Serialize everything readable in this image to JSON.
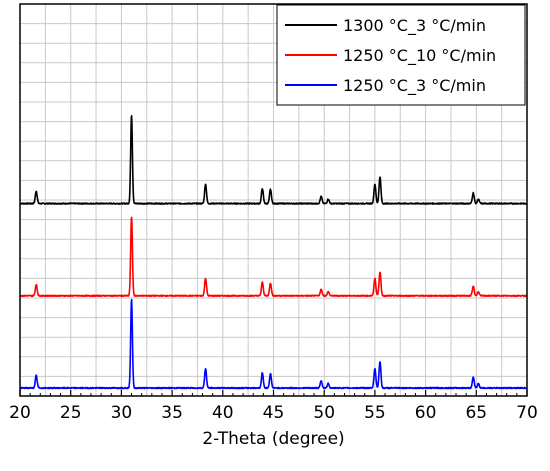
{
  "chart_data": {
    "type": "line",
    "title": "",
    "xlabel": "2-Theta (degree)",
    "ylabel": "",
    "xlim": [
      20,
      70
    ],
    "x_ticks": [
      20,
      25,
      30,
      35,
      40,
      45,
      50,
      55,
      60,
      65,
      70
    ],
    "grid": true,
    "y_ticks_visible": false,
    "legend_position": "top-right",
    "peaks": [
      {
        "x": 21.6,
        "rel": 0.14
      },
      {
        "x": 31.0,
        "rel": 1.0
      },
      {
        "x": 38.3,
        "rel": 0.22
      },
      {
        "x": 43.9,
        "rel": 0.17
      },
      {
        "x": 44.7,
        "rel": 0.16
      },
      {
        "x": 49.7,
        "rel": 0.08
      },
      {
        "x": 50.4,
        "rel": 0.05
      },
      {
        "x": 55.0,
        "rel": 0.22
      },
      {
        "x": 55.5,
        "rel": 0.3
      },
      {
        "x": 64.7,
        "rel": 0.12
      },
      {
        "x": 65.2,
        "rel": 0.05
      }
    ],
    "series": [
      {
        "name": "1300 °C_3 °C/min",
        "color": "#000000",
        "offset": 2,
        "scale": 0.96
      },
      {
        "name": "1250 °C_10 °C/min",
        "color": "#ff0000",
        "offset": 1,
        "scale": 0.86
      },
      {
        "name": "1250 °C_3 °C/min",
        "color": "#0000ff",
        "offset": 0,
        "scale": 0.96
      }
    ]
  }
}
